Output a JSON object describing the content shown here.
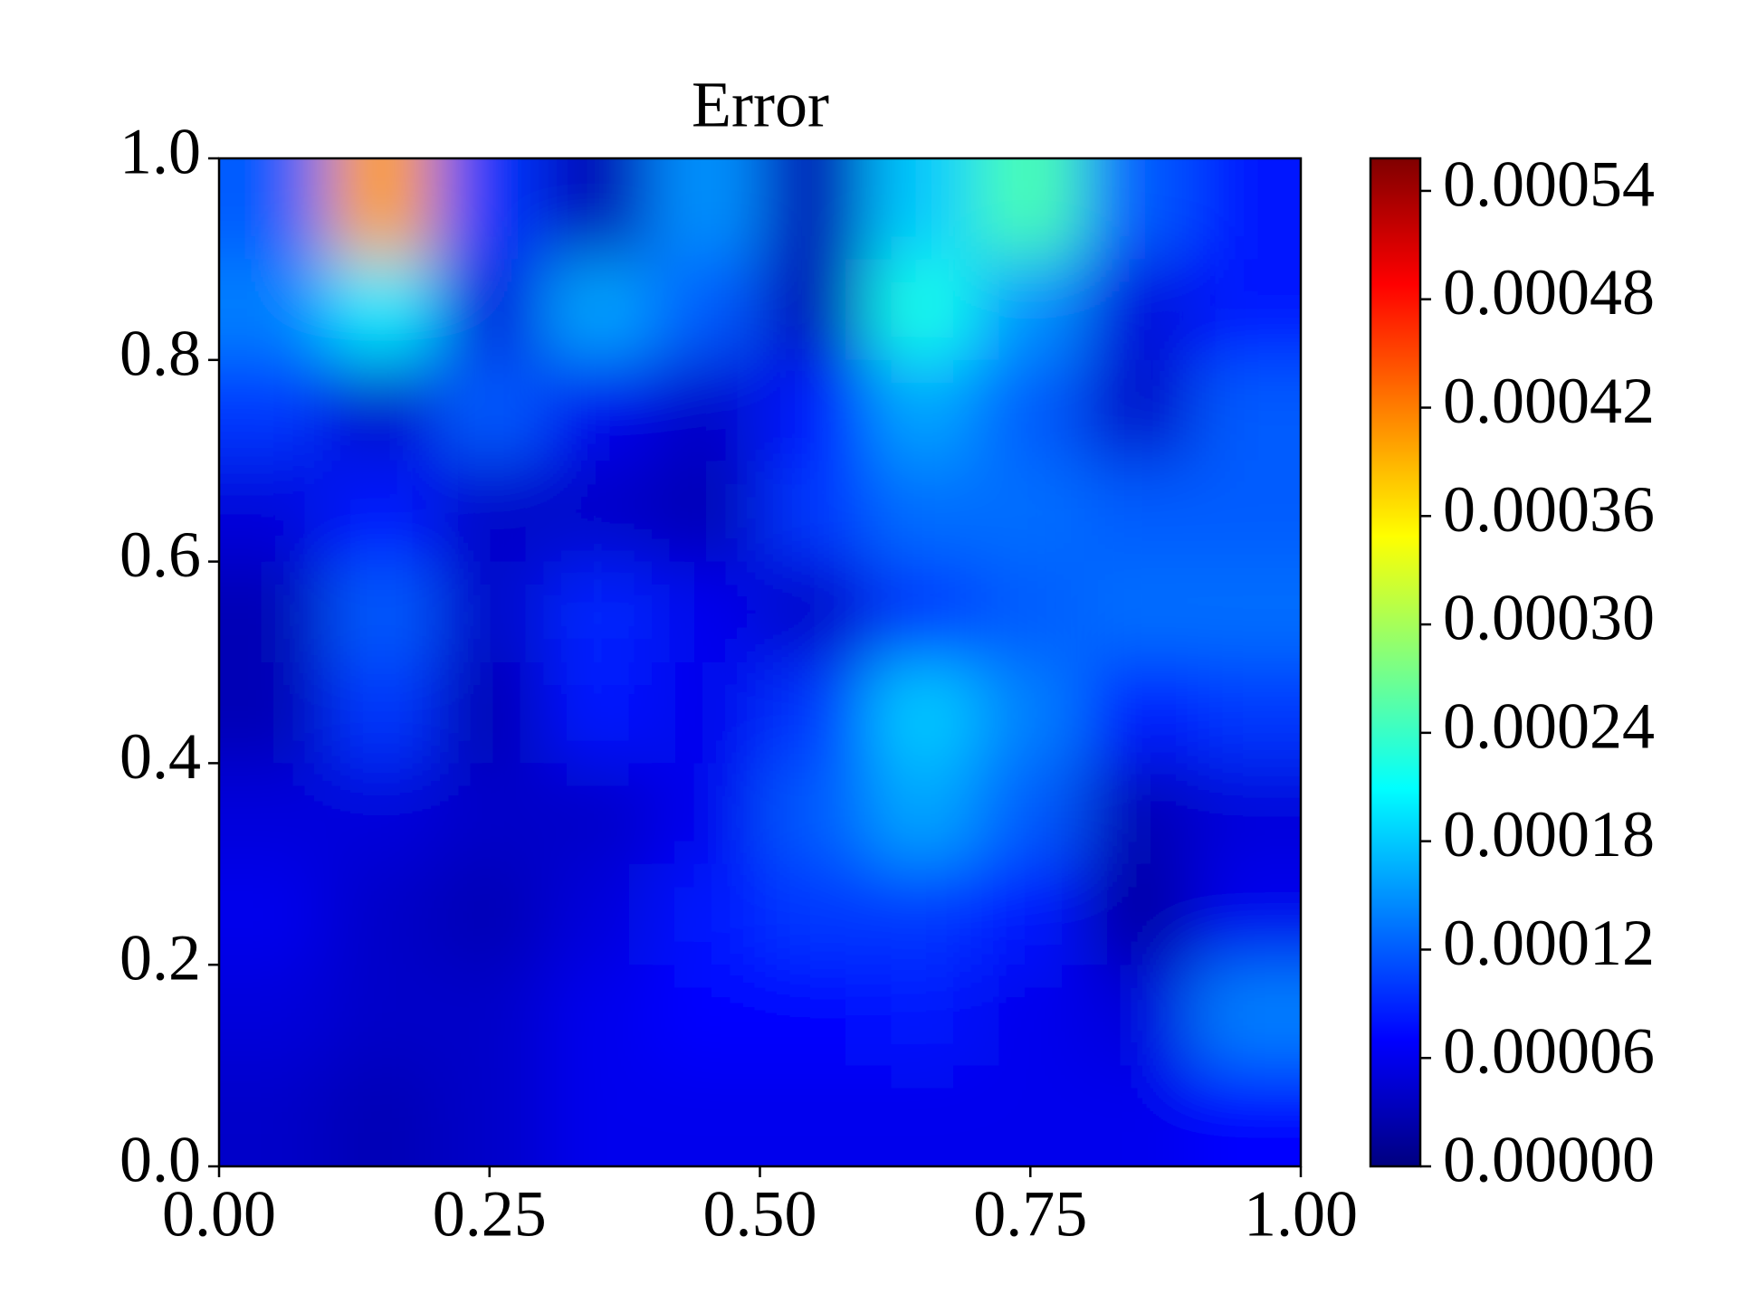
{
  "chart_data": {
    "type": "heatmap",
    "title": "Error",
    "colormap": "jet",
    "x": [
      0.05,
      0.15,
      0.25,
      0.35,
      0.45,
      0.55,
      0.65,
      0.75,
      0.85,
      0.95
    ],
    "y": [
      0.95,
      0.85,
      0.75,
      0.65,
      0.55,
      0.45,
      0.35,
      0.25,
      0.15,
      0.05
    ],
    "z": [
      [
        0.00012,
        0.0004,
        0.0001,
        3e-05,
        0.00015,
        3e-05,
        0.00018,
        0.00025,
        0.00012,
        8e-05
      ],
      [
        0.00014,
        0.0002,
        5e-05,
        0.00016,
        0.00012,
        3e-05,
        0.00022,
        0.00015,
        5e-05,
        8e-05
      ],
      [
        0.0001,
        4e-05,
        0.00012,
        6e-05,
        4e-05,
        8e-05,
        0.00016,
        0.00012,
        4e-05,
        0.00012
      ],
      [
        5e-05,
        8e-05,
        4e-05,
        4e-05,
        3e-05,
        0.0001,
        0.00013,
        0.00013,
        0.00012,
        0.00012
      ],
      [
        3e-05,
        0.00012,
        4e-05,
        9e-05,
        6e-05,
        4e-05,
        0.0001,
        0.00012,
        0.00013,
        0.00013
      ],
      [
        3e-05,
        0.0001,
        3e-05,
        8e-05,
        6e-05,
        0.0001,
        0.00018,
        0.00014,
        8e-05,
        0.0001
      ],
      [
        5e-05,
        5e-05,
        4e-05,
        4e-05,
        6e-05,
        0.00012,
        0.00016,
        0.00012,
        3e-05,
        5e-05
      ],
      [
        6e-05,
        4e-05,
        3e-05,
        5e-05,
        8e-05,
        0.0001,
        0.0001,
        8e-05,
        2e-05,
        6e-05
      ],
      [
        5e-05,
        4e-05,
        4e-05,
        6e-05,
        7e-05,
        7e-05,
        8e-05,
        6e-05,
        5e-05,
        0.00014
      ],
      [
        4e-05,
        3e-05,
        4e-05,
        6e-05,
        6e-05,
        6e-05,
        6e-05,
        6e-05,
        6e-05,
        7e-05
      ]
    ],
    "xlim": [
      0,
      1
    ],
    "ylim": [
      0,
      1
    ],
    "xticks": [
      {
        "value": 0,
        "label": "0.00"
      },
      0.25,
      {
        "value": 0.5,
        "label": "0.50"
      },
      0.75,
      {
        "value": 1,
        "label": "1.00"
      }
    ],
    "yticks": [
      {
        "value": 0,
        "label": "0.0"
      },
      0.2,
      0.4,
      0.6,
      0.8,
      {
        "value": 1,
        "label": "1.0"
      }
    ],
    "clim": [
      0,
      0.000558
    ],
    "cticks": [
      {
        "value": 0,
        "label": "0.00000"
      },
      6e-05,
      0.00012,
      0.00018,
      0.00024,
      {
        "value": 0.0003,
        "label": "0.00030"
      },
      0.00036,
      0.00042,
      0.00048,
      0.00054
    ]
  }
}
